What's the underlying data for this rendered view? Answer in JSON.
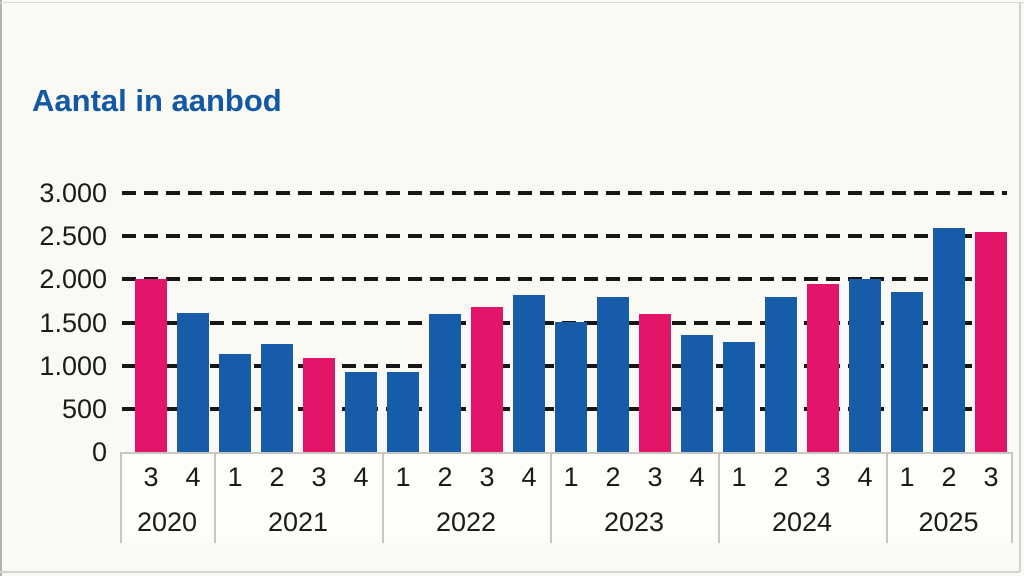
{
  "title": "Aantal in aanbod",
  "colors": {
    "title": "#1358A5",
    "bar_default": "#165CA8",
    "bar_highlight": "#E3156B",
    "grid": "#161616",
    "text": "#1B1B1B",
    "box_border": "#C7C7C2",
    "background": "#FAF9F4"
  },
  "chart_data": {
    "type": "bar",
    "title": "Aantal in aanbod",
    "xlabel": "",
    "ylabel": "",
    "ylim": [
      0,
      3000
    ],
    "grid": "dashed-horizontal",
    "legend": "none",
    "highlight_rule": "third-quarter bars shown in pink, all other quarters in blue",
    "yticks": [
      {
        "label": "3.000",
        "value": 3000
      },
      {
        "label": "2.500",
        "value": 2500
      },
      {
        "label": "2.000",
        "value": 2000
      },
      {
        "label": "1.500",
        "value": 1500
      },
      {
        "label": "1.000",
        "value": 1000
      },
      {
        "label": "500",
        "value": 500
      },
      {
        "label": "0",
        "value": 0
      }
    ],
    "groups": [
      {
        "year": "2020",
        "quarters": [
          "3",
          "4"
        ],
        "values": [
          2000,
          1610
        ]
      },
      {
        "year": "2021",
        "quarters": [
          "1",
          "2",
          "3",
          "4"
        ],
        "values": [
          1130,
          1250,
          1090,
          930
        ]
      },
      {
        "year": "2022",
        "quarters": [
          "1",
          "2",
          "3",
          "4"
        ],
        "values": [
          930,
          1600,
          1680,
          1820
        ]
      },
      {
        "year": "2023",
        "quarters": [
          "1",
          "2",
          "3",
          "4"
        ],
        "values": [
          1510,
          1800,
          1600,
          1350
        ]
      },
      {
        "year": "2024",
        "quarters": [
          "1",
          "2",
          "3",
          "4"
        ],
        "values": [
          1270,
          1800,
          1950,
          2000
        ]
      },
      {
        "year": "2025",
        "quarters": [
          "1",
          "2",
          "3"
        ],
        "values": [
          1850,
          2600,
          2550
        ]
      }
    ]
  }
}
